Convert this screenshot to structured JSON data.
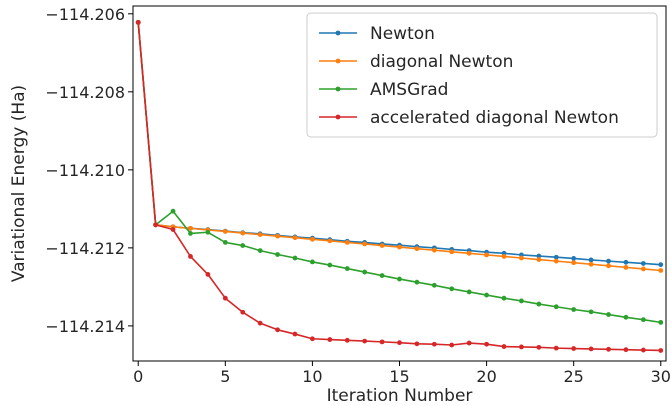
{
  "chart_data": {
    "type": "line",
    "title": "",
    "xlabel": "Iteration Number",
    "ylabel": "Variational Energy (Ha)",
    "xlim": [
      -0.3,
      30.3
    ],
    "ylim": [
      -114.2149,
      -114.2058
    ],
    "xticks": [
      0,
      5,
      10,
      15,
      20,
      25,
      30
    ],
    "xtick_labels": [
      "0",
      "5",
      "10",
      "15",
      "20",
      "25",
      "30"
    ],
    "yticks": [
      -114.206,
      -114.208,
      -114.21,
      -114.212,
      -114.214
    ],
    "ytick_labels": [
      "−114.206",
      "−114.208",
      "−114.210",
      "−114.212",
      "−114.214"
    ],
    "grid": false,
    "legend_position": "upper-right",
    "x": [
      0,
      1,
      2,
      3,
      4,
      5,
      6,
      7,
      8,
      9,
      10,
      11,
      12,
      13,
      14,
      15,
      16,
      17,
      18,
      19,
      20,
      21,
      22,
      23,
      24,
      25,
      26,
      27,
      28,
      29,
      30
    ],
    "series": [
      {
        "name": "Newton",
        "color": "#1f77b4",
        "values": [
          -114.20622,
          -114.21141,
          -114.21146,
          -114.2115,
          -114.21153,
          -114.21157,
          -114.21161,
          -114.21164,
          -114.21168,
          -114.21172,
          -114.21175,
          -114.21179,
          -114.21183,
          -114.21186,
          -114.2119,
          -114.21193,
          -114.21197,
          -114.212,
          -114.21204,
          -114.21207,
          -114.21211,
          -114.21214,
          -114.21218,
          -114.21221,
          -114.21224,
          -114.21227,
          -114.21231,
          -114.21234,
          -114.21237,
          -114.2124,
          -114.21243
        ]
      },
      {
        "name": "diagonal Newton",
        "color": "#ff7f0e",
        "values": [
          -114.20622,
          -114.21141,
          -114.21146,
          -114.2115,
          -114.21154,
          -114.21158,
          -114.21162,
          -114.21166,
          -114.2117,
          -114.21174,
          -114.21178,
          -114.21182,
          -114.21186,
          -114.2119,
          -114.21194,
          -114.21198,
          -114.21202,
          -114.21206,
          -114.2121,
          -114.21214,
          -114.21218,
          -114.21222,
          -114.21226,
          -114.2123,
          -114.21234,
          -114.21238,
          -114.21242,
          -114.21246,
          -114.2125,
          -114.21254,
          -114.21258
        ]
      },
      {
        "name": "AMSGrad",
        "color": "#2ca02c",
        "values": [
          -114.20622,
          -114.21141,
          -114.21106,
          -114.21163,
          -114.2116,
          -114.21186,
          -114.21194,
          -114.21207,
          -114.21217,
          -114.21226,
          -114.21236,
          -114.21244,
          -114.21253,
          -114.21262,
          -114.21271,
          -114.2128,
          -114.21288,
          -114.21296,
          -114.21305,
          -114.21313,
          -114.21321,
          -114.21329,
          -114.21336,
          -114.21344,
          -114.21351,
          -114.21358,
          -114.21364,
          -114.21371,
          -114.21378,
          -114.21384,
          -114.21391
        ]
      },
      {
        "name": "accelerated diagonal Newton",
        "color": "#d62728",
        "values": [
          -114.20622,
          -114.21141,
          -114.21153,
          -114.21222,
          -114.21268,
          -114.21329,
          -114.21365,
          -114.21393,
          -114.2141,
          -114.21421,
          -114.21433,
          -114.21435,
          -114.21437,
          -114.21439,
          -114.21441,
          -114.21443,
          -114.21446,
          -114.21447,
          -114.21449,
          -114.21444,
          -114.21447,
          -114.21453,
          -114.21454,
          -114.21455,
          -114.21457,
          -114.21458,
          -114.21459,
          -114.2146,
          -114.21461,
          -114.21462,
          -114.21463
        ]
      }
    ]
  }
}
